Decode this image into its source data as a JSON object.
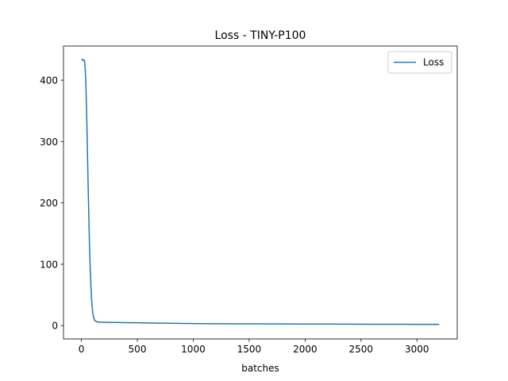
{
  "chart_data": {
    "type": "line",
    "title": "Loss - TINY-P100",
    "xlabel": "batches",
    "ylabel": "",
    "xlim": [
      -160,
      3360
    ],
    "ylim": [
      -21.7,
      455.7
    ],
    "x_ticks": [
      0,
      500,
      1000,
      1500,
      2000,
      2500,
      3000
    ],
    "y_ticks": [
      0,
      100,
      200,
      300,
      400
    ],
    "grid": false,
    "legend": "top-right",
    "series": [
      {
        "name": "Loss",
        "color": "#1f77b4",
        "x": [
          0,
          10,
          20,
          25,
          30,
          35,
          40,
          45,
          50,
          55,
          60,
          65,
          70,
          75,
          80,
          85,
          90,
          95,
          100,
          105,
          110,
          115,
          120,
          125,
          130,
          135,
          140,
          145,
          150,
          160,
          170,
          180,
          200,
          220,
          250,
          300,
          350,
          400,
          450,
          500,
          600,
          700,
          800,
          900,
          1000,
          1100,
          1200,
          1400,
          1600,
          1800,
          2000,
          2200,
          2400,
          2600,
          2800,
          3000,
          3100,
          3200
        ],
        "y": [
          433,
          434,
          432,
          433,
          428,
          415,
          395,
          360,
          320,
          275,
          230,
          190,
          150,
          115,
          88,
          65,
          47,
          33,
          24,
          17,
          13,
          10,
          8.5,
          7.5,
          7,
          6.6,
          6.3,
          6.1,
          5.9,
          5.7,
          5.6,
          5.5,
          5.4,
          5.3,
          5.2,
          5.1,
          5.0,
          4.9,
          4.7,
          4.6,
          4.3,
          4.0,
          3.8,
          3.6,
          3.4,
          3.2,
          3.1,
          2.9,
          2.8,
          2.7,
          2.6,
          2.5,
          2.4,
          2.3,
          2.2,
          2.1,
          2.0,
          2.0
        ]
      }
    ]
  }
}
